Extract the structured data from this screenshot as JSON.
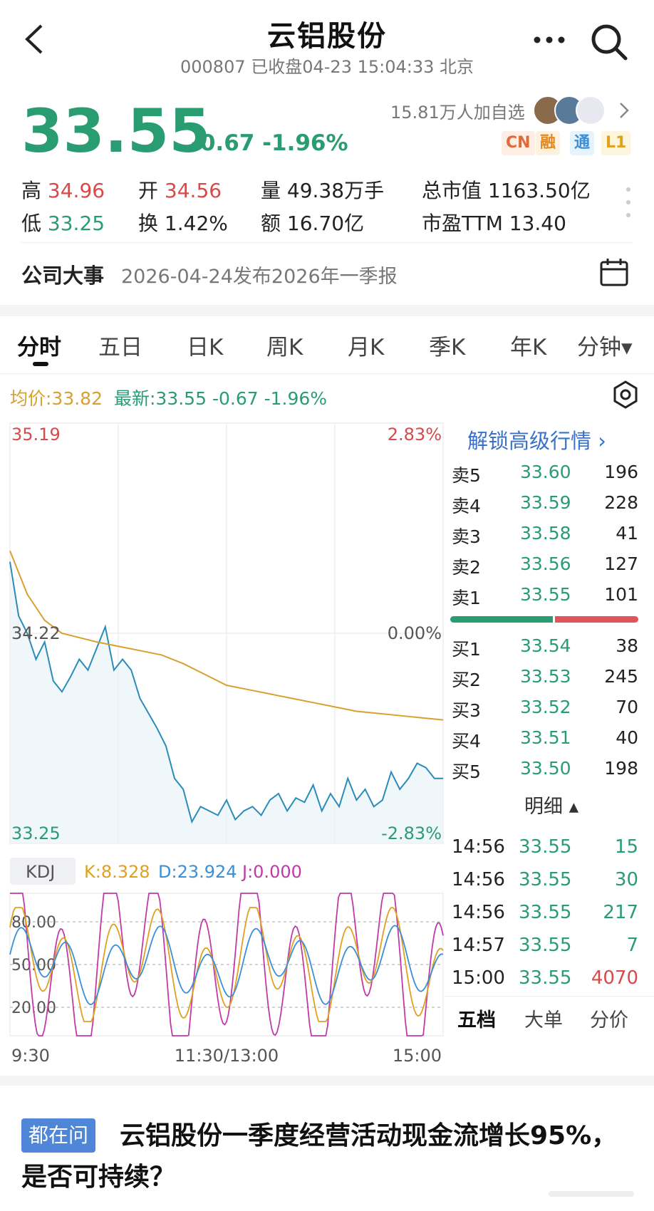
{
  "header": {
    "title": "云铝股份",
    "subtitle": "000807 已收盘04-23 15:04:33 北京"
  },
  "quote": {
    "price": "33.55",
    "change": "-0.67 -1.96%",
    "followers": "15.81万人加自选",
    "tags": [
      {
        "label": "CN",
        "color": "#e06a3a",
        "bg": "#fdeee6"
      },
      {
        "label": "融",
        "color": "#e08a20",
        "bg": "#fdf1e0"
      },
      {
        "label": "通",
        "color": "#3a8fd6",
        "bg": "#e6f2fc"
      },
      {
        "label": "L1",
        "color": "#e0a020",
        "bg": "#fdf5dc"
      }
    ],
    "stats": {
      "high_label": "高",
      "high": "34.96",
      "open_label": "开",
      "open": "34.56",
      "volume_label": "量",
      "volume": "49.38万手",
      "mcap_label": "总市值",
      "mcap": "1163.50亿",
      "low_label": "低",
      "low": "33.25",
      "turnover_label": "换",
      "turnover": "1.42%",
      "amount_label": "额",
      "amount": "16.70亿",
      "pe_label": "市盈TTM",
      "pe": "13.40"
    }
  },
  "event": {
    "label": "公司大事",
    "text": "2026-04-24发布2026年一季报"
  },
  "tabs": [
    "分时",
    "五日",
    "日K",
    "周K",
    "月K",
    "季K",
    "年K",
    "分钟▾"
  ],
  "indicators": {
    "avg": "均价:33.82",
    "latest": "最新:33.55  -0.67  -1.96%"
  },
  "chart_data": {
    "type": "line",
    "y_left_labels": {
      "top": "35.19",
      "mid": "34.22",
      "bottom": "33.25"
    },
    "y_right_labels": {
      "top": "2.83%",
      "mid": "0.00%",
      "bottom": "-2.83%"
    },
    "ylim": [
      33.25,
      35.19
    ],
    "x_labels": [
      "9:30",
      "11:30/13:00",
      "15:00"
    ],
    "series": [
      {
        "color": "#2b8cb8",
        "x": [
          0,
          0.02,
          0.04,
          0.06,
          0.08,
          0.1,
          0.12,
          0.14,
          0.16,
          0.18,
          0.2,
          0.22,
          0.24,
          0.26,
          0.28,
          0.3,
          0.32,
          0.34,
          0.36,
          0.38,
          0.4,
          0.42,
          0.44,
          0.46,
          0.48,
          0.5,
          0.52,
          0.54,
          0.56,
          0.58,
          0.6,
          0.62,
          0.64,
          0.66,
          0.68,
          0.7,
          0.72,
          0.74,
          0.76,
          0.78,
          0.8,
          0.82,
          0.84,
          0.86,
          0.88,
          0.9,
          0.92,
          0.94,
          0.96,
          0.98,
          1.0
        ],
        "values": [
          34.55,
          34.3,
          34.22,
          34.1,
          34.18,
          34.0,
          33.95,
          34.02,
          34.1,
          34.05,
          34.15,
          34.25,
          34.05,
          34.1,
          34.05,
          33.92,
          33.85,
          33.78,
          33.7,
          33.55,
          33.5,
          33.35,
          33.42,
          33.4,
          33.38,
          33.45,
          33.36,
          33.4,
          33.42,
          33.38,
          33.45,
          33.48,
          33.4,
          33.46,
          33.44,
          33.52,
          33.4,
          33.48,
          33.42,
          33.55,
          33.45,
          33.5,
          33.42,
          33.45,
          33.58,
          33.5,
          33.55,
          33.62,
          33.6,
          33.55,
          33.55
        ]
      },
      {
        "color": "#d9a030",
        "x": [
          0,
          0.04,
          0.08,
          0.12,
          0.16,
          0.2,
          0.25,
          0.3,
          0.35,
          0.4,
          0.45,
          0.5,
          0.55,
          0.6,
          0.65,
          0.7,
          0.75,
          0.8,
          0.85,
          0.9,
          0.95,
          1.0
        ],
        "values": [
          34.6,
          34.4,
          34.28,
          34.22,
          34.2,
          34.18,
          34.16,
          34.14,
          34.12,
          34.08,
          34.03,
          33.98,
          33.96,
          33.94,
          33.92,
          33.9,
          33.88,
          33.86,
          33.85,
          33.84,
          33.83,
          33.82
        ]
      }
    ],
    "kdj": {
      "labels": {
        "name": "KDJ",
        "k": "K:8.328",
        "d": "D:23.924",
        "j": "J:0.000"
      },
      "levels": [
        "80.00",
        "50.00",
        "20.00"
      ],
      "colors": {
        "k": "#e0a020",
        "d": "#3a8fd6",
        "j": "#c03aa8"
      }
    }
  },
  "orderbook": {
    "unlock": "解锁高级行情 ›",
    "asks": [
      {
        "side": "卖5",
        "price": "33.60",
        "vol": "196"
      },
      {
        "side": "卖4",
        "price": "33.59",
        "vol": "228"
      },
      {
        "side": "卖3",
        "price": "33.58",
        "vol": "41"
      },
      {
        "side": "卖2",
        "price": "33.56",
        "vol": "127"
      },
      {
        "side": "卖1",
        "price": "33.55",
        "vol": "101"
      }
    ],
    "bids": [
      {
        "side": "买1",
        "price": "33.54",
        "vol": "38"
      },
      {
        "side": "买2",
        "price": "33.53",
        "vol": "245"
      },
      {
        "side": "买3",
        "price": "33.52",
        "vol": "70"
      },
      {
        "side": "买4",
        "price": "33.51",
        "vol": "40"
      },
      {
        "side": "买5",
        "price": "33.50",
        "vol": "198"
      }
    ],
    "buy_ratio": 0.55,
    "detail_label": "明细 ▴",
    "trades": [
      {
        "time": "14:56",
        "price": "33.55",
        "vol": "15",
        "color": "#2a9c72"
      },
      {
        "time": "14:56",
        "price": "33.55",
        "vol": "30",
        "color": "#2a9c72"
      },
      {
        "time": "14:56",
        "price": "33.55",
        "vol": "217",
        "color": "#2a9c72"
      },
      {
        "time": "14:57",
        "price": "33.55",
        "vol": "7",
        "color": "#2a9c72"
      },
      {
        "time": "15:00",
        "price": "33.55",
        "vol": "4070",
        "color": "#d9494a"
      }
    ],
    "bottom_tabs": [
      "五档",
      "大单",
      "分价"
    ]
  },
  "article": {
    "badge": "都在问",
    "title": "云铝股份一季度经营活动现金流增长95%，是否可持续？"
  }
}
